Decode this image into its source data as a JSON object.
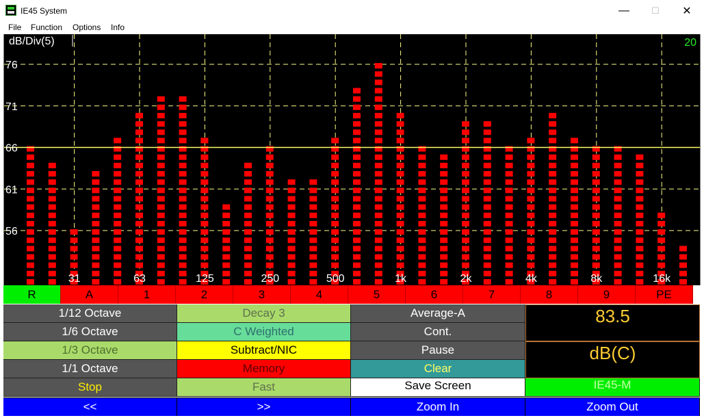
{
  "window": {
    "title": "IE45 System",
    "minimize": "—",
    "maximize": "☐",
    "close": "✕"
  },
  "menu": [
    "File",
    "Function",
    "Options",
    "Info"
  ],
  "chart": {
    "scale_label": "dB/Div(5)",
    "avg_time": "20",
    "y_tick_labels": [
      "76",
      "71",
      "66",
      "61",
      "56"
    ],
    "x_tick_labels": [
      "31",
      "63",
      "125",
      "250",
      "500",
      "1k",
      "2k",
      "4k",
      "8k",
      "16k"
    ],
    "reference_line_label": "66",
    "colors": {
      "bars": "#ff0000",
      "grid": "#ffff88",
      "reference": "#ffff66",
      "text": "#ffffff",
      "avg": "#22ee22"
    }
  },
  "chart_data": {
    "type": "bar",
    "title": "dB/Div(5)",
    "ylim": [
      49.5,
      80
    ],
    "y_ticks": [
      56,
      61,
      66,
      71,
      76
    ],
    "reference_level": 66,
    "values": [
      66.5,
      64.5,
      56.5,
      63.5,
      67.5,
      70.5,
      72.5,
      72.5,
      67.5,
      59.5,
      64.5,
      66.5,
      62.5,
      62.5,
      67.5,
      73.5,
      76.5,
      70.5,
      66.5,
      65.5,
      69.5,
      69.5,
      66.5,
      67.5,
      70.5,
      67.5,
      66.5,
      66.5,
      65.5,
      58.5,
      54.5
    ]
  },
  "band_buttons": [
    "R",
    "A",
    "1",
    "2",
    "3",
    "4",
    "5",
    "6",
    "7",
    "8",
    "9",
    "PE"
  ],
  "controls": {
    "col1": [
      "1/12 Octave",
      "1/6 Octave",
      "1/3 Octave",
      "1/1 Octave",
      "Stop"
    ],
    "col2": [
      "Decay 3",
      "C Weighted",
      "Subtract/NIC",
      "Memory",
      "Fast"
    ],
    "col3": [
      "Average-A",
      "Cont.",
      "Pause",
      "Clear",
      "Save Screen"
    ],
    "device": "IE45-M"
  },
  "readout": {
    "value": "83.5",
    "unit": "dB(C)"
  },
  "nav": [
    "<<",
    ">>",
    "Zoom In",
    "Zoom Out"
  ]
}
